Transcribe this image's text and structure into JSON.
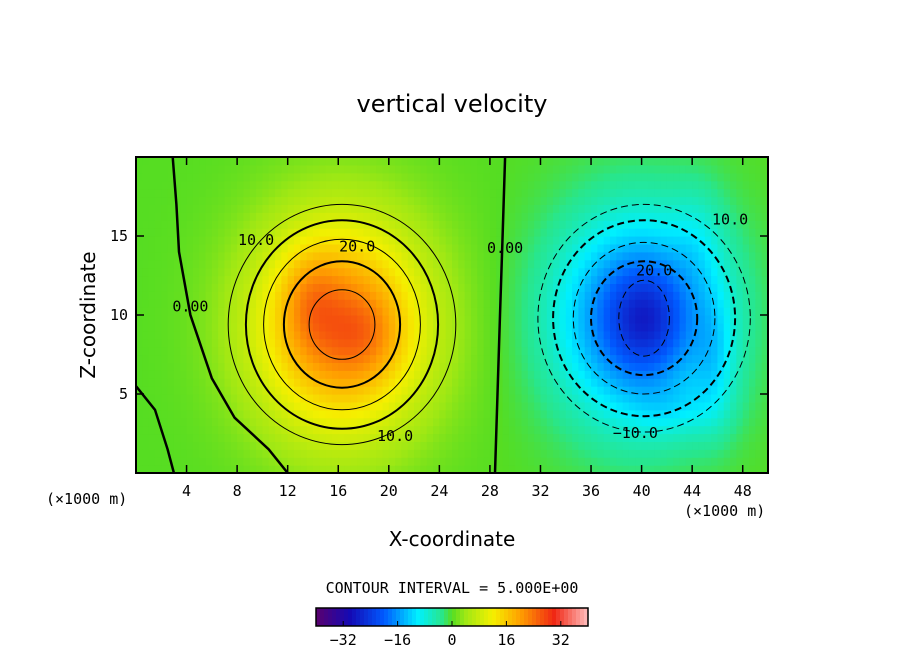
{
  "chart_data": {
    "type": "heatmap",
    "title": "vertical velocity",
    "xlabel": "X-coordinate",
    "ylabel": "Z-coordinate",
    "x_unit_note": "(×1000 m)",
    "z_unit_note": "(×1000 m)",
    "xlim": [
      0,
      50
    ],
    "ylim": [
      0,
      20
    ],
    "x_ticks": [
      4,
      8,
      12,
      16,
      20,
      24,
      28,
      32,
      36,
      40,
      44,
      48
    ],
    "y_ticks": [
      5,
      10,
      15
    ],
    "contour_interval_text": "CONTOUR INTERVAL = 5.000E+00",
    "contour_interval": 5,
    "colorbar": {
      "range": [
        -40,
        40
      ],
      "tick_values": [
        -32,
        -16,
        0,
        16,
        32
      ],
      "tick_labels": [
        "−32",
        "−16",
        "0",
        "16",
        "32"
      ]
    },
    "contour_labels": [
      {
        "text": "10.0",
        "x": 9.5,
        "z": 14.7
      },
      {
        "text": "20.0",
        "x": 17.5,
        "z": 14.3
      },
      {
        "text": "10.0",
        "x": 20.5,
        "z": 2.3
      },
      {
        "text": "0.00",
        "x": 4.3,
        "z": 10.5
      },
      {
        "text": "0.00",
        "x": 29.2,
        "z": 14.2
      },
      {
        "text": "20.0",
        "x": 41.0,
        "z": 12.8
      },
      {
        "text": "10.0",
        "x": 47.0,
        "z": 16.0
      },
      {
        "text": "−10.0",
        "x": 39.5,
        "z": 2.5
      }
    ],
    "features": [
      {
        "name": "updraft core",
        "x": 16,
        "z": 9.5,
        "max_w": 27
      },
      {
        "name": "downdraft core",
        "x": 40,
        "z": 9.8,
        "min_w": -27
      }
    ]
  }
}
